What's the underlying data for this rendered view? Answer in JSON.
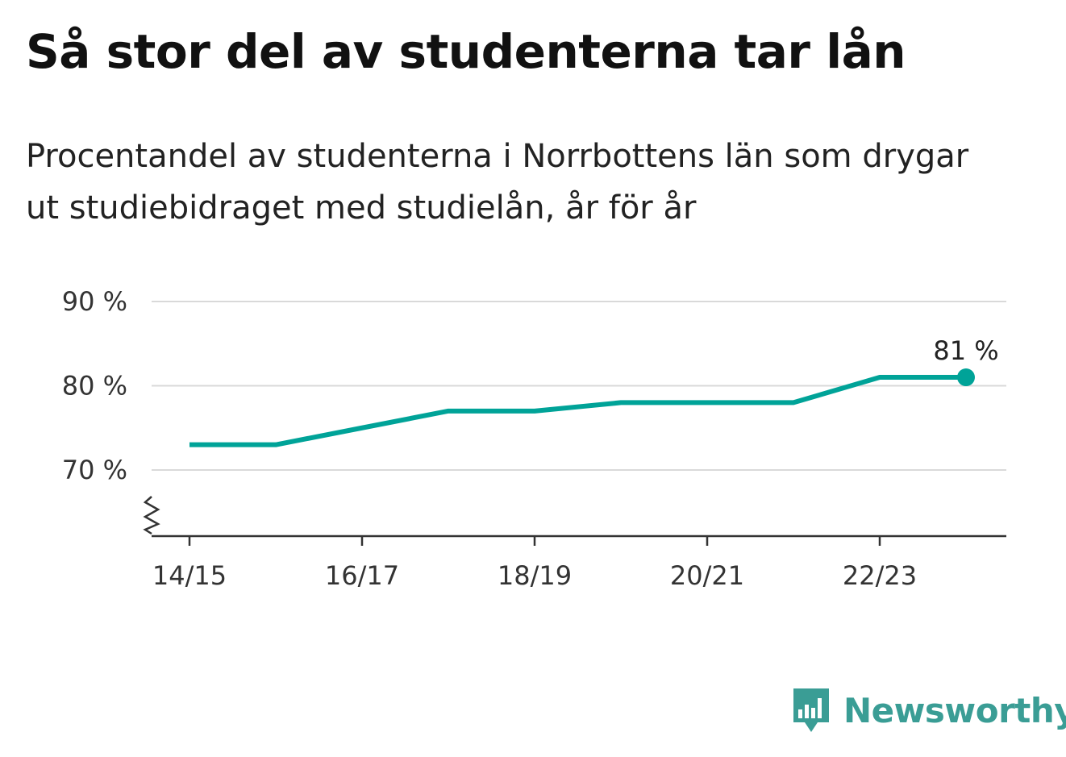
{
  "title": "Så stor del av studenterna tar lån",
  "subtitle": "Procentandel av studenterna i Norrbottens län som drygar ut studiebidraget med studielån, år för år",
  "brand": {
    "name": "Newsworthy",
    "color": "#3a9d95"
  },
  "chart_data": {
    "type": "line",
    "x": [
      "14/15",
      "15/16",
      "16/17",
      "17/18",
      "18/19",
      "19/20",
      "20/21",
      "21/22",
      "22/23",
      "23/24"
    ],
    "x_tick_labels": [
      "14/15",
      "16/17",
      "18/19",
      "20/21",
      "22/23"
    ],
    "series": [
      {
        "values": [
          73,
          73,
          75,
          77,
          77,
          78,
          78,
          78,
          81,
          81
        ],
        "color": "#00a398"
      }
    ],
    "y_ticks": [
      70,
      80,
      90
    ],
    "y_tick_labels": [
      "70 %",
      "80 %",
      "90 %"
    ],
    "ylim": [
      62,
      90
    ],
    "y_axis_break": true,
    "grid": true,
    "last_point_label": "81 %",
    "xlabel": "",
    "ylabel": ""
  }
}
